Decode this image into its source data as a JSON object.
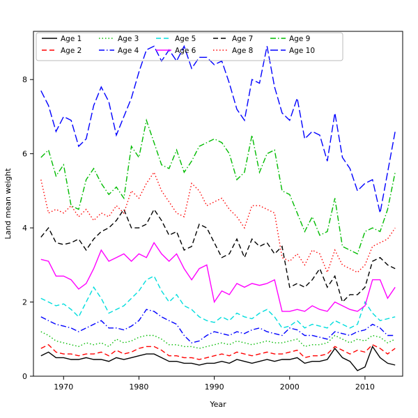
{
  "figure": {
    "xlabel": "Year",
    "ylabel": "Land mean weight"
  },
  "chart_data": {
    "type": "line",
    "title": "",
    "xlabel": "Year",
    "ylabel": "Land mean weight",
    "xlim": [
      1966,
      2015
    ],
    "ylim": [
      0,
      9.3
    ],
    "xticks": [
      1970,
      1980,
      1990,
      2000,
      2010
    ],
    "yticks": [
      0,
      2,
      4,
      6,
      8
    ],
    "grid": false,
    "legend_position": "top-left, 5 columns, 2 rows",
    "x": [
      1967,
      1968,
      1969,
      1970,
      1971,
      1972,
      1973,
      1974,
      1975,
      1976,
      1977,
      1978,
      1979,
      1980,
      1981,
      1982,
      1983,
      1984,
      1985,
      1986,
      1987,
      1988,
      1989,
      1990,
      1991,
      1992,
      1993,
      1994,
      1995,
      1996,
      1997,
      1998,
      1999,
      2000,
      2001,
      2002,
      2003,
      2004,
      2005,
      2006,
      2007,
      2008,
      2009,
      2010,
      2011,
      2012,
      2013,
      2014
    ],
    "series": [
      {
        "name": "Age 1",
        "color": "#000000",
        "linestyle": "solid",
        "values": [
          0.55,
          0.65,
          0.5,
          0.5,
          0.45,
          0.45,
          0.5,
          0.45,
          0.45,
          0.4,
          0.5,
          0.45,
          0.5,
          0.55,
          0.6,
          0.6,
          0.5,
          0.4,
          0.4,
          0.35,
          0.35,
          0.3,
          0.35,
          0.35,
          0.4,
          0.35,
          0.45,
          0.4,
          0.35,
          0.4,
          0.45,
          0.4,
          0.45,
          0.45,
          0.5,
          0.35,
          0.4,
          0.4,
          0.45,
          0.75,
          0.5,
          0.4,
          0.15,
          0.25,
          0.8,
          0.5,
          0.35,
          0.3
        ]
      },
      {
        "name": "Age 2",
        "color": "#ff0000",
        "linestyle": "dashed",
        "values": [
          0.75,
          0.85,
          0.65,
          0.6,
          0.6,
          0.55,
          0.6,
          0.6,
          0.65,
          0.55,
          0.7,
          0.6,
          0.65,
          0.75,
          0.8,
          0.8,
          0.7,
          0.55,
          0.55,
          0.5,
          0.5,
          0.45,
          0.5,
          0.55,
          0.6,
          0.55,
          0.65,
          0.6,
          0.55,
          0.6,
          0.65,
          0.6,
          0.6,
          0.65,
          0.7,
          0.5,
          0.55,
          0.55,
          0.6,
          0.8,
          0.7,
          0.6,
          0.7,
          0.65,
          0.85,
          0.75,
          0.6,
          0.75
        ]
      },
      {
        "name": "Age 3",
        "color": "#00bb00",
        "linestyle": "dotted",
        "values": [
          1.2,
          1.1,
          0.95,
          0.9,
          0.85,
          0.8,
          0.9,
          0.85,
          0.9,
          0.8,
          1.0,
          0.9,
          0.95,
          1.05,
          1.1,
          1.1,
          1.0,
          0.85,
          0.85,
          0.8,
          0.8,
          0.75,
          0.8,
          0.85,
          0.9,
          0.85,
          0.95,
          0.9,
          0.85,
          0.9,
          0.95,
          0.9,
          0.9,
          0.95,
          1.0,
          0.8,
          0.85,
          0.85,
          0.9,
          1.1,
          1.0,
          0.9,
          1.0,
          0.95,
          1.1,
          1.05,
          0.9,
          1.0
        ]
      },
      {
        "name": "Age 4",
        "color": "#0000ff",
        "linestyle": "dashdot",
        "values": [
          1.6,
          1.5,
          1.4,
          1.35,
          1.3,
          1.2,
          1.3,
          1.4,
          1.5,
          1.3,
          1.3,
          1.25,
          1.35,
          1.5,
          1.8,
          1.75,
          1.6,
          1.5,
          1.4,
          1.1,
          0.9,
          0.95,
          1.1,
          1.2,
          1.15,
          1.1,
          1.2,
          1.15,
          1.25,
          1.3,
          1.2,
          1.15,
          1.1,
          1.3,
          1.25,
          1.1,
          1.1,
          1.05,
          1.0,
          1.2,
          1.15,
          1.1,
          1.2,
          1.25,
          1.4,
          1.3,
          1.1,
          1.1
        ]
      },
      {
        "name": "Age 5",
        "color": "#00dddd",
        "linestyle": "dashed",
        "values": [
          2.1,
          2.0,
          1.9,
          1.95,
          1.8,
          1.6,
          2.0,
          2.4,
          2.1,
          1.7,
          1.8,
          1.9,
          2.1,
          2.3,
          2.6,
          2.7,
          2.3,
          2.0,
          2.2,
          1.9,
          1.8,
          1.6,
          1.5,
          1.45,
          1.6,
          1.5,
          1.7,
          1.6,
          1.55,
          1.7,
          1.8,
          1.6,
          1.3,
          1.35,
          1.5,
          1.3,
          1.4,
          1.35,
          1.3,
          1.5,
          1.4,
          1.3,
          1.4,
          2.0,
          1.7,
          1.5,
          1.55,
          1.6
        ]
      },
      {
        "name": "Age 6",
        "color": "#ff00ff",
        "linestyle": "solid",
        "values": [
          3.15,
          3.1,
          2.7,
          2.7,
          2.6,
          2.35,
          2.5,
          2.9,
          3.4,
          3.1,
          3.2,
          3.3,
          3.1,
          3.3,
          3.2,
          3.6,
          3.3,
          3.1,
          3.3,
          2.9,
          2.6,
          2.9,
          3.0,
          2.0,
          2.3,
          2.2,
          2.5,
          2.4,
          2.5,
          2.45,
          2.5,
          2.6,
          1.75,
          1.75,
          1.8,
          1.75,
          1.9,
          1.8,
          1.75,
          2.0,
          1.9,
          1.8,
          1.75,
          1.9,
          2.6,
          2.6,
          2.1,
          2.4
        ]
      },
      {
        "name": "Age 7",
        "color": "#000000",
        "linestyle": "dashed",
        "values": [
          3.75,
          4.0,
          3.6,
          3.55,
          3.6,
          3.7,
          3.4,
          3.7,
          3.9,
          4.0,
          4.2,
          4.5,
          4.0,
          4.0,
          4.1,
          4.5,
          4.2,
          3.8,
          3.9,
          3.4,
          3.5,
          4.1,
          4.0,
          3.6,
          3.2,
          3.3,
          3.7,
          3.2,
          3.7,
          3.5,
          3.6,
          3.3,
          3.5,
          2.4,
          2.5,
          2.4,
          2.6,
          2.9,
          2.4,
          2.7,
          2.0,
          2.2,
          2.2,
          2.4,
          3.1,
          3.2,
          3.0,
          2.9
        ]
      },
      {
        "name": "Age 8",
        "color": "#ff0000",
        "linestyle": "dotted",
        "values": [
          5.3,
          4.4,
          4.5,
          4.4,
          4.6,
          4.3,
          4.5,
          4.2,
          4.4,
          4.3,
          4.6,
          4.4,
          5.0,
          4.8,
          5.2,
          5.5,
          5.0,
          4.7,
          4.4,
          4.3,
          5.2,
          5.0,
          4.6,
          4.7,
          4.8,
          4.5,
          4.3,
          4.0,
          4.6,
          4.6,
          4.5,
          4.4,
          3.2,
          3.1,
          3.3,
          3.0,
          3.4,
          3.3,
          2.8,
          3.4,
          3.0,
          2.9,
          2.8,
          3.0,
          3.5,
          3.6,
          3.7,
          4.0
        ]
      },
      {
        "name": "Age 9",
        "color": "#00bb00",
        "linestyle": "dashdot",
        "values": [
          5.9,
          6.1,
          5.4,
          5.7,
          4.6,
          4.5,
          5.3,
          5.6,
          5.2,
          4.9,
          5.1,
          4.8,
          6.2,
          5.9,
          6.9,
          6.3,
          5.7,
          5.6,
          6.1,
          5.5,
          5.8,
          6.2,
          6.3,
          6.4,
          6.3,
          6.0,
          5.3,
          5.5,
          6.5,
          5.5,
          6.0,
          6.1,
          5.0,
          4.9,
          4.4,
          3.9,
          4.3,
          3.8,
          3.9,
          4.8,
          3.5,
          3.4,
          3.3,
          3.9,
          4.0,
          3.9,
          4.5,
          5.5
        ]
      },
      {
        "name": "Age 10",
        "color": "#0000ff",
        "linestyle": "longdash",
        "values": [
          7.7,
          7.3,
          6.6,
          7.0,
          6.9,
          6.2,
          6.4,
          7.3,
          7.8,
          7.4,
          6.5,
          7.0,
          7.5,
          8.2,
          8.8,
          8.9,
          8.5,
          8.8,
          8.5,
          8.9,
          8.3,
          8.6,
          8.6,
          8.4,
          8.5,
          7.9,
          7.2,
          6.9,
          8.0,
          7.9,
          8.9,
          7.8,
          7.1,
          6.9,
          7.5,
          6.4,
          6.6,
          6.5,
          5.8,
          7.1,
          5.9,
          5.6,
          5.0,
          5.2,
          5.3,
          4.4,
          5.5,
          6.6
        ]
      }
    ]
  }
}
